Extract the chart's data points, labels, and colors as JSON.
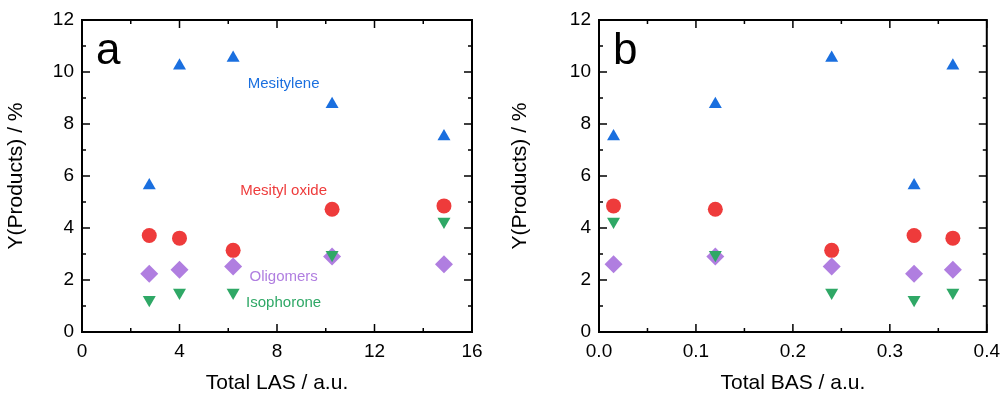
{
  "chart_data": [
    {
      "type": "scatter",
      "title": "a",
      "xlabel": "Total LAS / a.u.",
      "ylabel": "Y(Products) / %",
      "x": [
        2.76,
        4.0,
        6.2,
        10.26,
        14.85
      ],
      "xlim": [
        0,
        16
      ],
      "xticks": [
        0,
        4,
        8,
        12,
        16
      ],
      "ylim": [
        0,
        12
      ],
      "yticks": [
        0,
        2,
        4,
        6,
        8,
        10,
        12
      ],
      "grid": false,
      "legend": false,
      "series": [
        {
          "name": "Mesitylene",
          "color": "#1a6fdf",
          "marker": "triangle",
          "values": [
            5.63,
            10.24,
            10.54,
            8.76,
            7.52
          ]
        },
        {
          "name": "Mesityl oxide",
          "color": "#ee3b3b",
          "marker": "circle",
          "values": [
            3.71,
            3.61,
            3.14,
            4.72,
            4.85
          ]
        },
        {
          "name": "Isophorone",
          "color": "#2fa866",
          "marker": "triangle-down",
          "values": [
            1.24,
            1.52,
            1.52,
            2.97,
            4.25
          ]
        },
        {
          "name": "Oligomers",
          "color": "#b07ee0",
          "marker": "diamond",
          "values": [
            2.24,
            2.39,
            2.52,
            2.9,
            2.61
          ]
        }
      ]
    },
    {
      "type": "scatter",
      "title": "b",
      "xlabel": "Total BAS / a.u.",
      "ylabel": "Y(Products) / %",
      "x": [
        0.015,
        0.12,
        0.24,
        0.325,
        0.365
      ],
      "xlim": [
        0,
        0.4
      ],
      "xticks": [
        {
          "value": 0,
          "label": "0.0"
        },
        0.1,
        0.2,
        0.3,
        0.4
      ],
      "ylim": [
        0,
        12
      ],
      "yticks": [
        0,
        2,
        4,
        6,
        8,
        10,
        12
      ],
      "grid": false,
      "legend": false,
      "series": [
        {
          "color": "#1a6fdf",
          "marker": "triangle",
          "values": [
            7.52,
            8.76,
            10.54,
            5.63,
            10.24
          ]
        },
        {
          "color": "#ee3b3b",
          "marker": "circle",
          "values": [
            4.85,
            4.72,
            3.14,
            3.71,
            3.61
          ]
        },
        {
          "color": "#2fa866",
          "marker": "triangle-down",
          "values": [
            4.25,
            2.97,
            1.52,
            1.24,
            1.52
          ]
        },
        {
          "color": "#b07ee0",
          "marker": "diamond",
          "values": [
            2.61,
            2.9,
            2.52,
            2.24,
            2.39
          ]
        }
      ]
    }
  ]
}
